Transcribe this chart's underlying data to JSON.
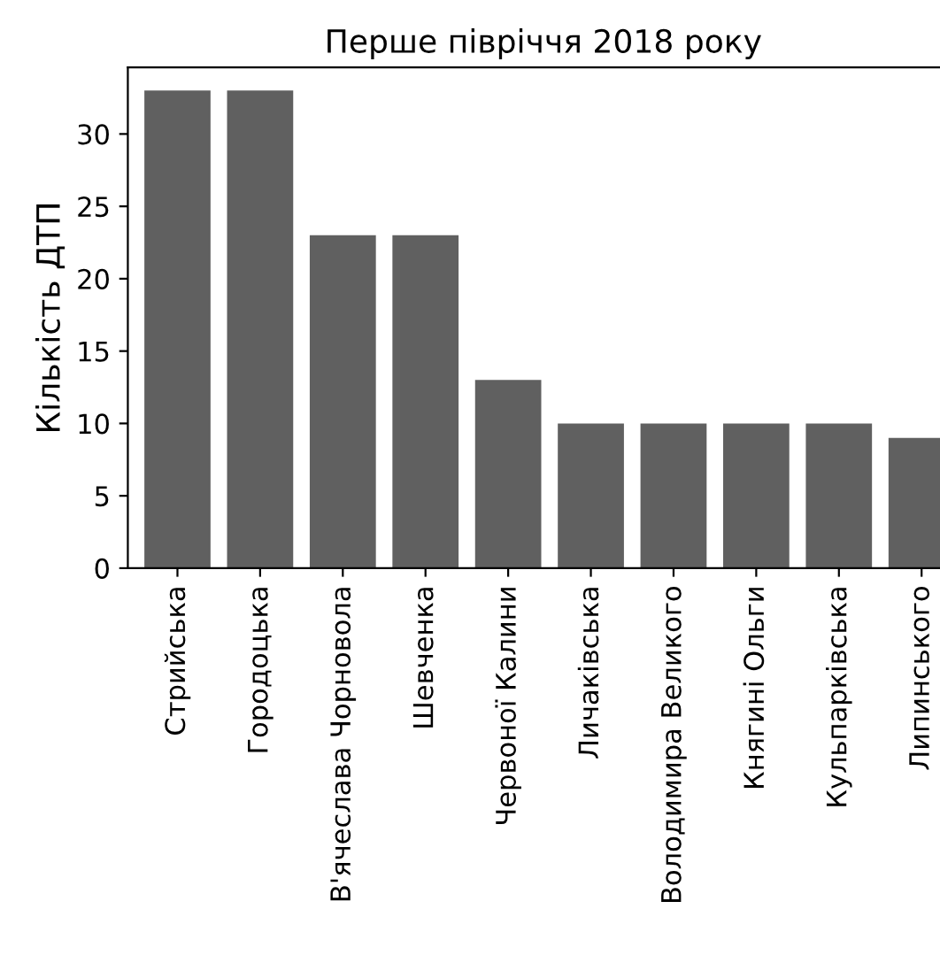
{
  "chart_data": {
    "type": "bar",
    "title": "Перше півріччя 2018 року",
    "ylabel": "Кількість ДТП",
    "categories": [
      "Стрийська",
      "Городоцька",
      "В'ячеслава Чорновола",
      "Шевченка",
      "Червоної Калини",
      "Личаківська",
      "Володимира Великого",
      "Княгині Ольги",
      "Кульпарківська",
      "Липинського"
    ],
    "values": [
      33,
      33,
      23,
      23,
      13,
      10,
      10,
      10,
      10,
      9
    ],
    "color": "#606060",
    "ylim": [
      0,
      34.6
    ],
    "yticks": [
      0,
      5,
      10,
      15,
      20,
      25,
      30
    ],
    "grid": false,
    "legend": false
  }
}
